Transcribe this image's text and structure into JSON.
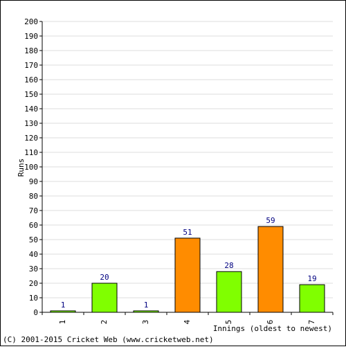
{
  "chart_data": {
    "type": "bar",
    "categories": [
      "1",
      "2",
      "3",
      "4",
      "5",
      "6",
      "7"
    ],
    "values": [
      1,
      20,
      1,
      51,
      28,
      59,
      19
    ],
    "data_labels": [
      "1",
      "20",
      "1",
      "51",
      "28",
      "59",
      "19"
    ],
    "bar_colors": [
      "#80ff00",
      "#80ff00",
      "#80ff00",
      "#ff8c00",
      "#80ff00",
      "#ff8c00",
      "#80ff00"
    ],
    "xlabel": "Innings (oldest to newest)",
    "ylabel": "Runs",
    "ylim": [
      0,
      200
    ],
    "yticks": [
      0,
      10,
      20,
      30,
      40,
      50,
      60,
      70,
      80,
      90,
      100,
      110,
      120,
      130,
      140,
      150,
      160,
      170,
      180,
      190,
      200
    ],
    "grid": true,
    "legend": "none"
  },
  "footer": "(C) 2001-2015 Cricket Web (www.cricketweb.net)",
  "colors": {
    "bar_not_out": "#80ff00",
    "bar_out": "#ff8c00",
    "data_label": "#000080",
    "grid": "#dddddd"
  }
}
